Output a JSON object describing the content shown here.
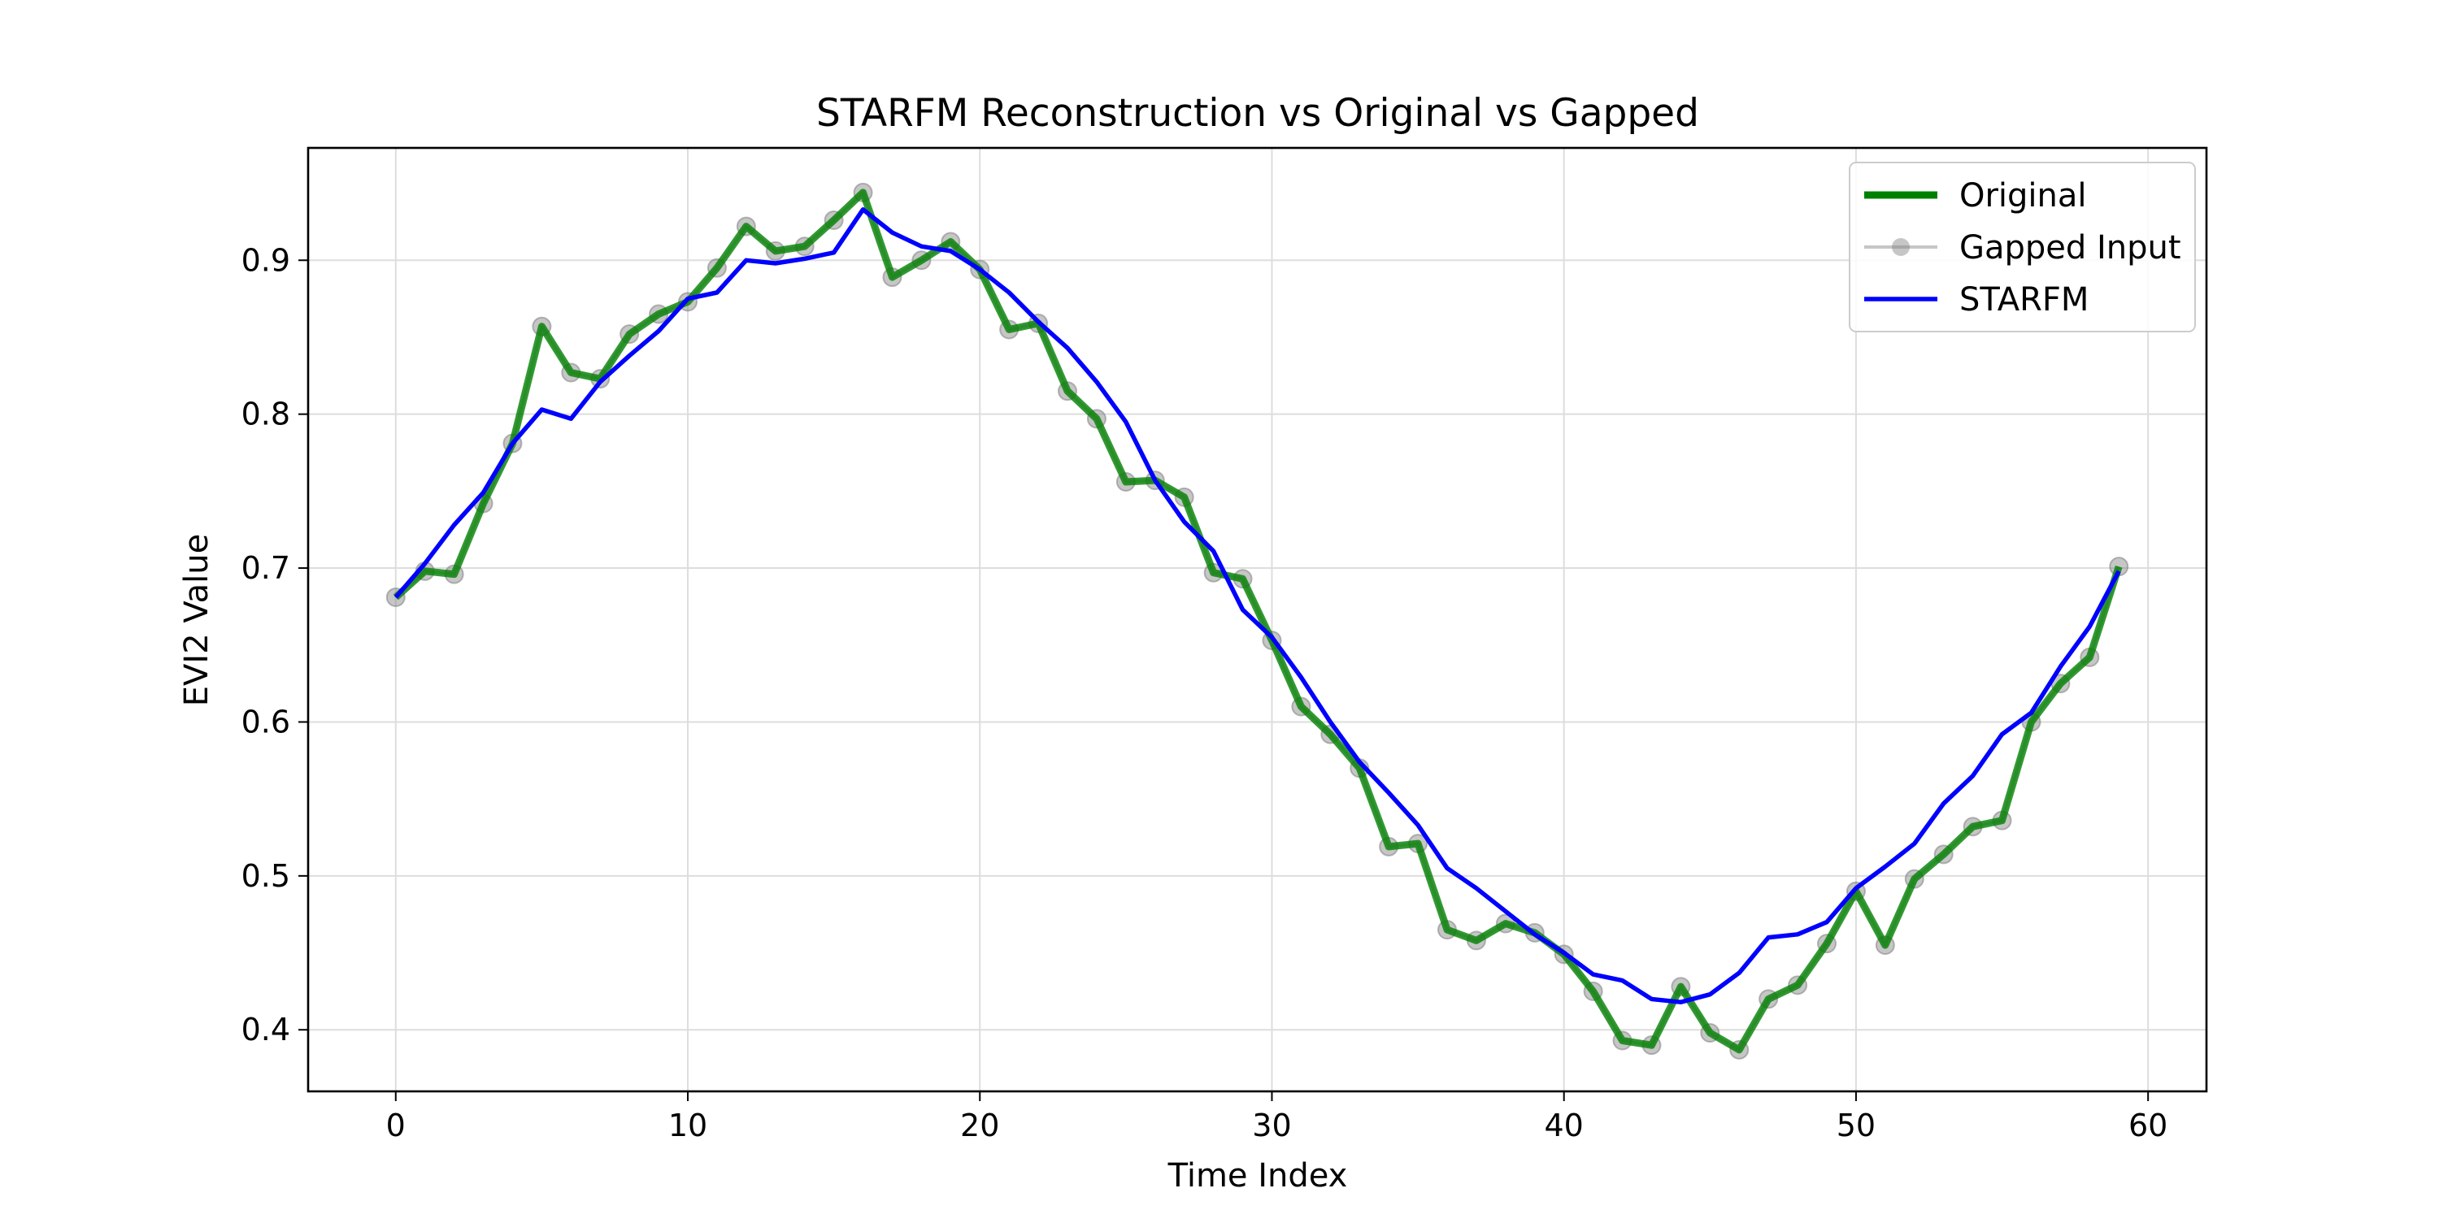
{
  "chart_data": {
    "type": "line",
    "title": "STARFM Reconstruction vs Original vs Gapped",
    "xlabel": "Time Index",
    "ylabel": "EVI2 Value",
    "xlim": [
      -3,
      62
    ],
    "ylim": [
      0.36,
      0.973
    ],
    "xticks": [
      0,
      10,
      20,
      30,
      40,
      50,
      60
    ],
    "yticks": [
      0.4,
      0.5,
      0.6,
      0.7,
      0.8,
      0.9
    ],
    "grid": true,
    "legend_position": "upper right",
    "x": [
      0,
      1,
      2,
      3,
      4,
      5,
      6,
      7,
      8,
      9,
      10,
      11,
      12,
      13,
      14,
      15,
      16,
      17,
      18,
      19,
      20,
      21,
      22,
      23,
      24,
      25,
      26,
      27,
      28,
      29,
      30,
      31,
      32,
      33,
      34,
      35,
      36,
      37,
      38,
      39,
      40,
      41,
      42,
      43,
      44,
      45,
      46,
      47,
      48,
      49,
      50,
      51,
      52,
      53,
      54,
      55,
      56,
      57,
      58,
      59
    ],
    "series": [
      {
        "name": "Original",
        "color": "#008000",
        "values": [
          0.681,
          0.698,
          0.696,
          0.742,
          0.781,
          0.857,
          0.827,
          0.823,
          0.852,
          0.865,
          0.873,
          0.895,
          0.922,
          0.906,
          0.909,
          0.926,
          0.944,
          0.889,
          0.9,
          0.912,
          0.894,
          0.855,
          0.859,
          0.815,
          0.797,
          0.756,
          0.757,
          0.746,
          0.697,
          0.693,
          0.653,
          0.61,
          0.592,
          0.57,
          0.519,
          0.521,
          0.465,
          0.458,
          0.469,
          0.463,
          0.449,
          0.425,
          0.393,
          0.39,
          0.428,
          0.398,
          0.387,
          0.42,
          0.429,
          0.456,
          0.49,
          0.455,
          0.498,
          0.514,
          0.532,
          0.536,
          0.6,
          0.625,
          0.642,
          0.701
        ]
      },
      {
        "name": "Gapped Input",
        "color": "#808080",
        "values": [
          0.681,
          0.698,
          0.696,
          0.742,
          0.781,
          0.857,
          0.827,
          0.823,
          0.852,
          0.865,
          0.873,
          0.895,
          0.922,
          0.906,
          0.909,
          0.926,
          0.944,
          0.889,
          0.9,
          0.912,
          0.894,
          0.855,
          0.859,
          0.815,
          0.797,
          0.756,
          0.757,
          0.746,
          0.697,
          0.693,
          0.653,
          0.61,
          0.592,
          0.57,
          0.519,
          0.521,
          0.465,
          0.458,
          0.469,
          0.463,
          0.449,
          0.425,
          0.393,
          0.39,
          0.428,
          0.398,
          0.387,
          0.42,
          0.429,
          0.456,
          0.49,
          0.455,
          0.498,
          0.514,
          0.532,
          0.536,
          0.6,
          0.625,
          0.642,
          0.701
        ]
      },
      {
        "name": "STARFM",
        "color": "#0000ff",
        "values": [
          0.681,
          0.703,
          0.728,
          0.749,
          0.781,
          0.803,
          0.797,
          0.821,
          0.838,
          0.854,
          0.875,
          0.879,
          0.9,
          0.898,
          0.901,
          0.905,
          0.933,
          0.918,
          0.909,
          0.906,
          0.894,
          0.879,
          0.86,
          0.843,
          0.821,
          0.795,
          0.757,
          0.73,
          0.711,
          0.673,
          0.655,
          0.629,
          0.6,
          0.574,
          0.554,
          0.533,
          0.505,
          0.492,
          0.477,
          0.462,
          0.45,
          0.436,
          0.432,
          0.42,
          0.418,
          0.423,
          0.437,
          0.46,
          0.462,
          0.47,
          0.492,
          0.506,
          0.521,
          0.547,
          0.565,
          0.592,
          0.606,
          0.636,
          0.662,
          0.698
        ]
      }
    ]
  }
}
